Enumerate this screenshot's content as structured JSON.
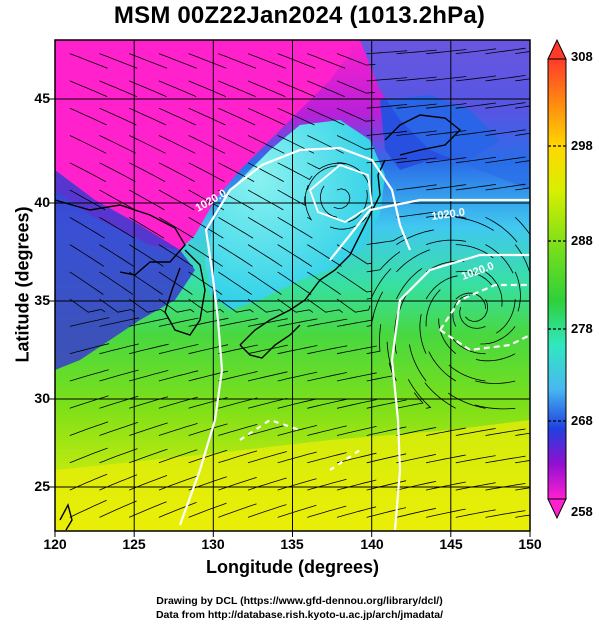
{
  "title": "MSM 00Z22Jan2024 (1013.2hPa)",
  "map": {
    "xlabel": "Longitude (degrees)",
    "ylabel": "Latitude  (degrees)",
    "lon_ticks": [
      "120",
      "125",
      "130",
      "135",
      "140",
      "145",
      "150"
    ],
    "lat_ticks": [
      "45",
      "40",
      "35",
      "30",
      "25"
    ],
    "lon_range": [
      120,
      150
    ],
    "lat_range": [
      22.4,
      47.6
    ],
    "isobar_labels": [
      "1020.0",
      "1020.0",
      "1020.0"
    ],
    "shading_variable": "temperature (K)",
    "overlays": [
      "streamlines",
      "isobars (white)",
      "coastlines (black)",
      "lat/lon grid"
    ]
  },
  "colorbar": {
    "ticks": [
      "308",
      "298",
      "288",
      "278",
      "268",
      "258"
    ],
    "colors": [
      "#ff3a2a",
      "#ffb000",
      "#f5f000",
      "#80e000",
      "#2ed03a",
      "#30e8c0",
      "#48b8f0",
      "#2040e0",
      "#9010d0",
      "#ff20d0"
    ]
  },
  "credits": {
    "line1": "Drawing by DCL (https://www.gfd-dennou.org/library/dcl/)",
    "line2": "Data from http://database.rish.kyoto-u.ac.jp/arch/jmadata/"
  }
}
